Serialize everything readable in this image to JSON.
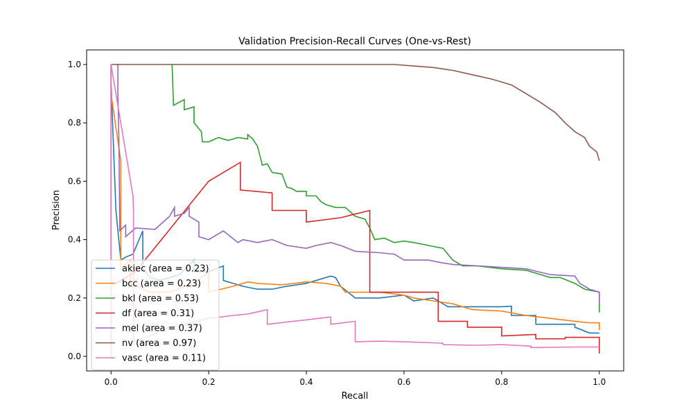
{
  "chart_data": {
    "type": "line",
    "title": "Validation Precision-Recall Curves (One-vs-Rest)",
    "xlabel": "Recall",
    "ylabel": "Precision",
    "xlim": [
      -0.05,
      1.05
    ],
    "ylim": [
      -0.05,
      1.05
    ],
    "xticks": [
      0.0,
      0.2,
      0.4,
      0.6,
      0.8,
      1.0
    ],
    "yticks": [
      0.0,
      0.2,
      0.4,
      0.6,
      0.8,
      1.0
    ],
    "xtick_labels": [
      "0.0",
      "0.2",
      "0.4",
      "0.6",
      "0.8",
      "1.0"
    ],
    "ytick_labels": [
      "0.0",
      "0.2",
      "0.4",
      "0.6",
      "0.8",
      "1.0"
    ],
    "grid": false,
    "legend_position": "lower-left",
    "series": [
      {
        "name": "akiec (area = 0.23)",
        "color": "#1f77b4",
        "points": [
          [
            0.0,
            1.0
          ],
          [
            0.0,
            0.94
          ],
          [
            0.01,
            0.5
          ],
          [
            0.02,
            0.33
          ],
          [
            0.03,
            0.34
          ],
          [
            0.045,
            0.35
          ],
          [
            0.065,
            0.43
          ],
          [
            0.065,
            0.3
          ],
          [
            0.08,
            0.27
          ],
          [
            0.1,
            0.26
          ],
          [
            0.14,
            0.28
          ],
          [
            0.17,
            0.33
          ],
          [
            0.17,
            0.29
          ],
          [
            0.2,
            0.29
          ],
          [
            0.23,
            0.31
          ],
          [
            0.23,
            0.26
          ],
          [
            0.27,
            0.24
          ],
          [
            0.3,
            0.23
          ],
          [
            0.33,
            0.23
          ],
          [
            0.36,
            0.24
          ],
          [
            0.4,
            0.25
          ],
          [
            0.45,
            0.275
          ],
          [
            0.46,
            0.27
          ],
          [
            0.47,
            0.24
          ],
          [
            0.5,
            0.2
          ],
          [
            0.55,
            0.2
          ],
          [
            0.6,
            0.21
          ],
          [
            0.62,
            0.19
          ],
          [
            0.66,
            0.2
          ],
          [
            0.69,
            0.17
          ],
          [
            0.75,
            0.17
          ],
          [
            0.8,
            0.17
          ],
          [
            0.82,
            0.172
          ],
          [
            0.82,
            0.14
          ],
          [
            0.87,
            0.14
          ],
          [
            0.87,
            0.11
          ],
          [
            0.95,
            0.11
          ],
          [
            0.95,
            0.1
          ],
          [
            0.98,
            0.08
          ],
          [
            1.0,
            0.08
          ]
        ]
      },
      {
        "name": "bcc (area = 0.23)",
        "color": "#ff7f0e",
        "points": [
          [
            0.0,
            1.0
          ],
          [
            0.0,
            0.9
          ],
          [
            0.02,
            0.67
          ],
          [
            0.02,
            0.3
          ],
          [
            0.04,
            0.33
          ],
          [
            0.04,
            0.25
          ],
          [
            0.08,
            0.22
          ],
          [
            0.12,
            0.22
          ],
          [
            0.17,
            0.25
          ],
          [
            0.2,
            0.29
          ],
          [
            0.2,
            0.22
          ],
          [
            0.25,
            0.24
          ],
          [
            0.28,
            0.255
          ],
          [
            0.3,
            0.25
          ],
          [
            0.35,
            0.245
          ],
          [
            0.4,
            0.255
          ],
          [
            0.44,
            0.25
          ],
          [
            0.47,
            0.24
          ],
          [
            0.48,
            0.22
          ],
          [
            0.55,
            0.22
          ],
          [
            0.6,
            0.21
          ],
          [
            0.62,
            0.2
          ],
          [
            0.66,
            0.19
          ],
          [
            0.7,
            0.18
          ],
          [
            0.74,
            0.16
          ],
          [
            0.8,
            0.155
          ],
          [
            0.85,
            0.14
          ],
          [
            0.9,
            0.13
          ],
          [
            0.95,
            0.12
          ],
          [
            0.98,
            0.115
          ],
          [
            1.0,
            0.115
          ],
          [
            1.0,
            0.09
          ]
        ]
      },
      {
        "name": "bkl (area = 0.53)",
        "color": "#2ca02c",
        "points": [
          [
            0.125,
            1.0
          ],
          [
            0.128,
            0.86
          ],
          [
            0.15,
            0.88
          ],
          [
            0.15,
            0.845
          ],
          [
            0.17,
            0.855
          ],
          [
            0.17,
            0.8
          ],
          [
            0.185,
            0.77
          ],
          [
            0.187,
            0.735
          ],
          [
            0.2,
            0.735
          ],
          [
            0.22,
            0.75
          ],
          [
            0.24,
            0.74
          ],
          [
            0.26,
            0.75
          ],
          [
            0.28,
            0.745
          ],
          [
            0.28,
            0.76
          ],
          [
            0.29,
            0.745
          ],
          [
            0.3,
            0.72
          ],
          [
            0.31,
            0.655
          ],
          [
            0.32,
            0.66
          ],
          [
            0.33,
            0.63
          ],
          [
            0.35,
            0.625
          ],
          [
            0.36,
            0.58
          ],
          [
            0.37,
            0.575
          ],
          [
            0.38,
            0.565
          ],
          [
            0.4,
            0.565
          ],
          [
            0.4,
            0.55
          ],
          [
            0.42,
            0.55
          ],
          [
            0.43,
            0.53
          ],
          [
            0.44,
            0.52
          ],
          [
            0.46,
            0.51
          ],
          [
            0.48,
            0.51
          ],
          [
            0.5,
            0.48
          ],
          [
            0.52,
            0.47
          ],
          [
            0.53,
            0.44
          ],
          [
            0.54,
            0.4
          ],
          [
            0.56,
            0.405
          ],
          [
            0.58,
            0.39
          ],
          [
            0.6,
            0.395
          ],
          [
            0.62,
            0.39
          ],
          [
            0.65,
            0.38
          ],
          [
            0.68,
            0.37
          ],
          [
            0.7,
            0.33
          ],
          [
            0.72,
            0.31
          ],
          [
            0.75,
            0.31
          ],
          [
            0.8,
            0.3
          ],
          [
            0.85,
            0.295
          ],
          [
            0.9,
            0.27
          ],
          [
            0.92,
            0.27
          ],
          [
            0.95,
            0.25
          ],
          [
            0.97,
            0.23
          ],
          [
            1.0,
            0.22
          ],
          [
            1.0,
            0.15
          ]
        ]
      },
      {
        "name": "df (area = 0.31)",
        "color": "#d62728",
        "points": [
          [
            0.0,
            1.0
          ],
          [
            0.0,
            0.25
          ],
          [
            0.01,
            0.25
          ],
          [
            0.05,
            0.29
          ],
          [
            0.2,
            0.6
          ],
          [
            0.265,
            0.665
          ],
          [
            0.265,
            0.57
          ],
          [
            0.33,
            0.56
          ],
          [
            0.33,
            0.5
          ],
          [
            0.4,
            0.5
          ],
          [
            0.4,
            0.46
          ],
          [
            0.47,
            0.475
          ],
          [
            0.53,
            0.5
          ],
          [
            0.53,
            0.22
          ],
          [
            0.6,
            0.22
          ],
          [
            0.67,
            0.22
          ],
          [
            0.67,
            0.12
          ],
          [
            0.73,
            0.12
          ],
          [
            0.73,
            0.1
          ],
          [
            0.8,
            0.1
          ],
          [
            0.8,
            0.07
          ],
          [
            0.87,
            0.075
          ],
          [
            0.87,
            0.06
          ],
          [
            0.93,
            0.06
          ],
          [
            0.93,
            0.065
          ],
          [
            1.0,
            0.065
          ],
          [
            1.0,
            0.01
          ]
        ]
      },
      {
        "name": "mel (area = 0.37)",
        "color": "#9467bd",
        "points": [
          [
            0.01,
            1.0
          ],
          [
            0.014,
            1.0
          ],
          [
            0.014,
            0.9
          ],
          [
            0.016,
            0.75
          ],
          [
            0.018,
            0.43
          ],
          [
            0.03,
            0.45
          ],
          [
            0.03,
            0.41
          ],
          [
            0.05,
            0.44
          ],
          [
            0.09,
            0.435
          ],
          [
            0.12,
            0.48
          ],
          [
            0.13,
            0.51
          ],
          [
            0.13,
            0.48
          ],
          [
            0.15,
            0.49
          ],
          [
            0.16,
            0.51
          ],
          [
            0.16,
            0.48
          ],
          [
            0.18,
            0.46
          ],
          [
            0.18,
            0.41
          ],
          [
            0.2,
            0.4
          ],
          [
            0.23,
            0.43
          ],
          [
            0.26,
            0.39
          ],
          [
            0.27,
            0.4
          ],
          [
            0.3,
            0.39
          ],
          [
            0.33,
            0.4
          ],
          [
            0.36,
            0.38
          ],
          [
            0.4,
            0.37
          ],
          [
            0.42,
            0.38
          ],
          [
            0.45,
            0.39
          ],
          [
            0.47,
            0.38
          ],
          [
            0.5,
            0.36
          ],
          [
            0.55,
            0.355
          ],
          [
            0.58,
            0.35
          ],
          [
            0.6,
            0.33
          ],
          [
            0.65,
            0.33
          ],
          [
            0.68,
            0.32
          ],
          [
            0.7,
            0.315
          ],
          [
            0.8,
            0.305
          ],
          [
            0.85,
            0.3
          ],
          [
            0.9,
            0.28
          ],
          [
            0.95,
            0.275
          ],
          [
            0.96,
            0.25
          ],
          [
            0.98,
            0.23
          ],
          [
            1.0,
            0.22
          ],
          [
            1.0,
            0.18
          ]
        ]
      },
      {
        "name": "nv (area = 0.97)",
        "color": "#8c564b",
        "points": [
          [
            0.0,
            1.0
          ],
          [
            0.58,
            1.0
          ],
          [
            0.62,
            0.995
          ],
          [
            0.66,
            0.99
          ],
          [
            0.7,
            0.98
          ],
          [
            0.74,
            0.965
          ],
          [
            0.78,
            0.95
          ],
          [
            0.82,
            0.93
          ],
          [
            0.85,
            0.9
          ],
          [
            0.88,
            0.87
          ],
          [
            0.91,
            0.835
          ],
          [
            0.93,
            0.8
          ],
          [
            0.95,
            0.77
          ],
          [
            0.97,
            0.75
          ],
          [
            0.98,
            0.72
          ],
          [
            0.995,
            0.7
          ],
          [
            1.0,
            0.67
          ]
        ]
      },
      {
        "name": "vasc (area = 0.11)",
        "color": "#e377c2",
        "points": [
          [
            0.0,
            0.0
          ],
          [
            0.0,
            1.0
          ],
          [
            0.045,
            0.55
          ],
          [
            0.046,
            0.5
          ],
          [
            0.046,
            0.05
          ],
          [
            0.08,
            0.07
          ],
          [
            0.12,
            0.1
          ],
          [
            0.15,
            0.11
          ],
          [
            0.2,
            0.13
          ],
          [
            0.25,
            0.14
          ],
          [
            0.28,
            0.145
          ],
          [
            0.32,
            0.16
          ],
          [
            0.32,
            0.11
          ],
          [
            0.4,
            0.125
          ],
          [
            0.45,
            0.135
          ],
          [
            0.45,
            0.11
          ],
          [
            0.5,
            0.12
          ],
          [
            0.5,
            0.05
          ],
          [
            0.55,
            0.052
          ],
          [
            0.6,
            0.05
          ],
          [
            0.68,
            0.045
          ],
          [
            0.68,
            0.04
          ],
          [
            0.75,
            0.038
          ],
          [
            0.8,
            0.04
          ],
          [
            0.86,
            0.035
          ],
          [
            0.86,
            0.03
          ],
          [
            0.95,
            0.032
          ],
          [
            1.0,
            0.032
          ]
        ]
      }
    ]
  }
}
